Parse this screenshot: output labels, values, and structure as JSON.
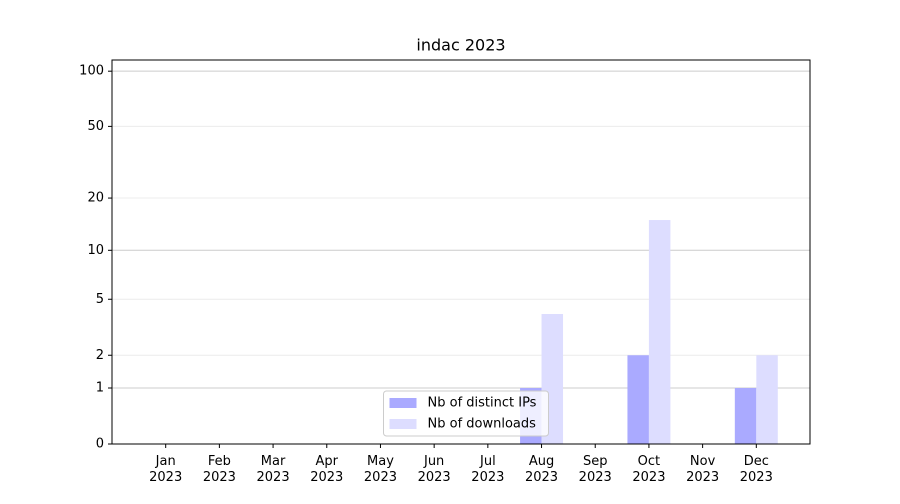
{
  "chart_data": {
    "type": "bar",
    "title": "indac 2023",
    "categories": [
      [
        "Jan",
        "2023"
      ],
      [
        "Feb",
        "2023"
      ],
      [
        "Mar",
        "2023"
      ],
      [
        "Apr",
        "2023"
      ],
      [
        "May",
        "2023"
      ],
      [
        "Jun",
        "2023"
      ],
      [
        "Jul",
        "2023"
      ],
      [
        "Aug",
        "2023"
      ],
      [
        "Sep",
        "2023"
      ],
      [
        "Oct",
        "2023"
      ],
      [
        "Nov",
        "2023"
      ],
      [
        "Dec",
        "2023"
      ]
    ],
    "series": [
      {
        "name": "Nb of distinct IPs",
        "color": "#aaaaff",
        "values": [
          0,
          0,
          0,
          0,
          0,
          0,
          0,
          1,
          0,
          2,
          0,
          1
        ]
      },
      {
        "name": "Nb of downloads",
        "color": "#ddddff",
        "values": [
          0,
          0,
          0,
          0,
          0,
          0,
          0,
          4,
          0,
          15,
          0,
          2
        ]
      }
    ],
    "yscale": "log1p",
    "ylim": [
      0,
      115
    ],
    "yticks": [
      0,
      1,
      2,
      5,
      10,
      20,
      50,
      100
    ],
    "grid": true,
    "legend": "lower center"
  }
}
